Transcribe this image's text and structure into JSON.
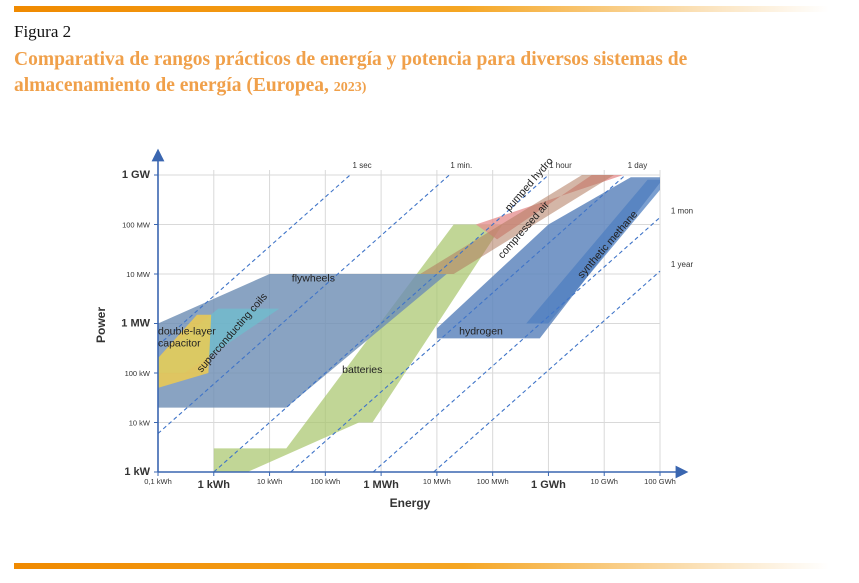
{
  "figure": {
    "label": "Figura 2",
    "title_main": "Comparativa de rangos prácticos de energía y potencia para diversos sistemas de almacenamiento de energía (Europea,",
    "title_year": "2023)"
  },
  "chart_data": {
    "type": "area",
    "xlabel": "Energy",
    "ylabel": "Power",
    "x_scale": "log",
    "y_scale": "log",
    "x_unit": "kWh",
    "y_unit": "kW",
    "xlim": [
      0.1,
      100000000
    ],
    "ylim": [
      1,
      1000000
    ],
    "x_ticks": [
      {
        "value": 0.1,
        "label": "0,1 kWh",
        "major": false
      },
      {
        "value": 1,
        "label": "1 kWh",
        "major": true
      },
      {
        "value": 10,
        "label": "10 kWh",
        "major": false
      },
      {
        "value": 100,
        "label": "100 kWh",
        "major": false
      },
      {
        "value": 1000,
        "label": "1 MWh",
        "major": true
      },
      {
        "value": 10000,
        "label": "10 MWh",
        "major": false
      },
      {
        "value": 100000,
        "label": "100 MWh",
        "major": false
      },
      {
        "value": 1000000,
        "label": "1 GWh",
        "major": true
      },
      {
        "value": 10000000,
        "label": "10 GWh",
        "major": false
      },
      {
        "value": 100000000,
        "label": "100 GWh",
        "major": false
      }
    ],
    "y_ticks": [
      {
        "value": 1,
        "label": "1 kW",
        "major": true
      },
      {
        "value": 10,
        "label": "10 kW",
        "major": false
      },
      {
        "value": 100,
        "label": "100 kW",
        "major": false
      },
      {
        "value": 1000,
        "label": "1 MW",
        "major": true
      },
      {
        "value": 10000,
        "label": "10 MW",
        "major": false
      },
      {
        "value": 100000,
        "label": "100 MW",
        "major": false
      },
      {
        "value": 1000000,
        "label": "1 GW",
        "major": true
      }
    ],
    "discharge_lines": [
      {
        "label": "1 sec",
        "hours": 0.000278,
        "label_side": "top"
      },
      {
        "label": "1 min.",
        "hours": 0.0167,
        "label_side": "top"
      },
      {
        "label": "1 hour",
        "hours": 1,
        "label_side": "top"
      },
      {
        "label": "1 day",
        "hours": 24,
        "label_side": "top"
      },
      {
        "label": "1 mon",
        "hours": 720,
        "label_side": "right"
      },
      {
        "label": "1 year",
        "hours": 8760,
        "label_side": "right"
      }
    ],
    "regions": [
      {
        "name": "batteries",
        "color": "#a6c56a",
        "opacity": 0.7,
        "polygon": [
          [
            1.0,
            3
          ],
          [
            20,
            3
          ],
          [
            20000,
            100000
          ],
          [
            150000,
            100000
          ],
          [
            700,
            10
          ],
          [
            400,
            10
          ],
          [
            4,
            1
          ],
          [
            1,
            1
          ]
        ],
        "label_at": [
          200,
          100
        ],
        "label_angle": 0
      },
      {
        "name": "flywheels",
        "color": "#6f8fb5",
        "opacity": 0.82,
        "polygon": [
          [
            0.1,
            20
          ],
          [
            3,
            20
          ],
          [
            20,
            20
          ],
          [
            15000,
            10000
          ],
          [
            10,
            10000
          ],
          [
            0.1,
            1000
          ]
        ],
        "label_at": [
          25,
          7000
        ],
        "label_angle": 0
      },
      {
        "name": "hydrogen",
        "color": "#5f86bd",
        "opacity": 0.85,
        "polygon": [
          [
            10000,
            500
          ],
          [
            700000,
            500
          ],
          [
            100000000,
            700000
          ],
          [
            100000000,
            900000
          ],
          [
            30000000,
            900000
          ],
          [
            1000000,
            100000
          ],
          [
            10000,
            800
          ]
        ],
        "label_at": [
          25000,
          600
        ],
        "label_angle": 0
      },
      {
        "name": "synthetic methane",
        "color": "#4f7fc0",
        "opacity": 0.75,
        "polygon": [
          [
            100000,
            1000
          ],
          [
            1000000,
            1000
          ],
          [
            100000000,
            500000
          ],
          [
            100000000,
            800000
          ],
          [
            60000000,
            800000
          ],
          [
            400000,
            1000
          ]
        ],
        "label_at": [
          4000000,
          8000
        ],
        "label_angle": -49
      },
      {
        "name": "pumped hydro",
        "color": "#e58f8f",
        "opacity": 0.78,
        "polygon": [
          [
            50000,
            100000
          ],
          [
            120000,
            50000
          ],
          [
            6000000,
            1000000
          ],
          [
            22000000,
            1000000
          ]
        ],
        "label_at": [
          200000,
          180000
        ],
        "label_angle": -49
      },
      {
        "name": "compressed air",
        "color": "#b07a5f",
        "opacity": 0.55,
        "polygon": [
          [
            5000,
            10000
          ],
          [
            20000,
            10000
          ],
          [
            15000000,
            1000000
          ],
          [
            4000000,
            1000000
          ]
        ],
        "label_at": [
          150000,
          20000
        ],
        "label_angle": -49
      },
      {
        "name": "superconducting coils",
        "color": "#6fbccd",
        "opacity": 0.78,
        "polygon": [
          [
            0.1,
            100
          ],
          [
            0.3,
            100
          ],
          [
            15,
            2000
          ],
          [
            1.2,
            2000
          ],
          [
            0.1,
            200
          ]
        ],
        "label_at": [
          0.6,
          100
        ],
        "label_angle": -49
      },
      {
        "name": "double-layer capacitor",
        "color": "#f5cd48",
        "opacity": 0.8,
        "polygon": [
          [
            0.1,
            50
          ],
          [
            0.8,
            100
          ],
          [
            0.9,
            1500
          ],
          [
            0.5,
            1500
          ],
          [
            0.1,
            200
          ]
        ],
        "label_lines": [
          "double-layer",
          "capacitor"
        ],
        "label_at": [
          0.1,
          600
        ],
        "label_angle": 0
      }
    ]
  }
}
